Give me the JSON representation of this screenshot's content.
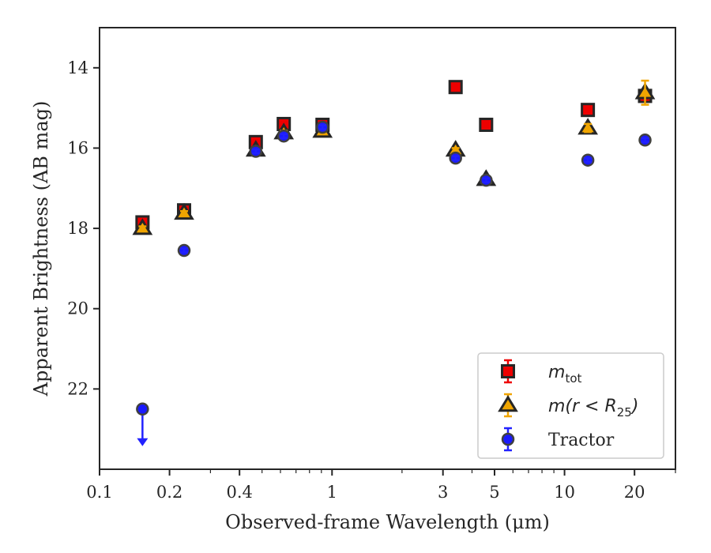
{
  "chart_data": {
    "type": "scatter",
    "xlabel": "Observed-frame Wavelength (μm)",
    "ylabel": "Apparent Brightness (AB mag)",
    "x_scale": "log",
    "y_inverted": true,
    "xlim": [
      0.1,
      30
    ],
    "ylim": [
      24,
      13
    ],
    "xticks": [
      {
        "value": 0.1,
        "label": "0.1"
      },
      {
        "value": 0.2,
        "label": "0.2"
      },
      {
        "value": 0.4,
        "label": "0.4"
      },
      {
        "value": 1,
        "label": "1"
      },
      {
        "value": 3,
        "label": "3"
      },
      {
        "value": 5,
        "label": "5"
      },
      {
        "value": 10,
        "label": "10"
      },
      {
        "value": 20,
        "label": "20"
      }
    ],
    "yticks": [
      {
        "value": 14,
        "label": "14"
      },
      {
        "value": 16,
        "label": "16"
      },
      {
        "value": 18,
        "label": "18"
      },
      {
        "value": 20,
        "label": "20"
      },
      {
        "value": 22,
        "label": "22"
      }
    ],
    "legend_position": "lower-right",
    "series": [
      {
        "name": "m_tot",
        "legend_label": "mtot",
        "marker": "square",
        "face_color": "#ee0000",
        "edge_color": "#262626",
        "err_color": "#ee0000",
        "points": [
          {
            "x": 0.153,
            "y": 17.85,
            "err": 0.05
          },
          {
            "x": 0.231,
            "y": 17.55,
            "err": 0.05
          },
          {
            "x": 0.47,
            "y": 15.85,
            "err": 0.05
          },
          {
            "x": 0.62,
            "y": 15.4,
            "err": 0.05
          },
          {
            "x": 0.91,
            "y": 15.42,
            "err": 0.05
          },
          {
            "x": 3.4,
            "y": 14.48,
            "err": 0.05
          },
          {
            "x": 4.6,
            "y": 15.42,
            "err": 0.05
          },
          {
            "x": 12.6,
            "y": 15.05,
            "err": 0.05
          },
          {
            "x": 22.2,
            "y": 14.7,
            "err": 0.1
          }
        ]
      },
      {
        "name": "m(r < R25)",
        "legend_label": "m(r<R25)",
        "marker": "triangle",
        "face_color": "#f0a500",
        "edge_color": "#262626",
        "err_color": "#f0a500",
        "points": [
          {
            "x": 0.153,
            "y": 18.0,
            "err": 0.05
          },
          {
            "x": 0.231,
            "y": 17.62,
            "err": 0.05
          },
          {
            "x": 0.47,
            "y": 16.05,
            "err": 0.05
          },
          {
            "x": 0.62,
            "y": 15.62,
            "err": 0.05
          },
          {
            "x": 0.91,
            "y": 15.58,
            "err": 0.05
          },
          {
            "x": 3.4,
            "y": 16.05,
            "err": 0.05
          },
          {
            "x": 4.6,
            "y": 16.78,
            "err": 0.05
          },
          {
            "x": 12.6,
            "y": 15.5,
            "err": 0.1
          },
          {
            "x": 22.2,
            "y": 14.62,
            "err": 0.3
          }
        ]
      },
      {
        "name": "Tractor",
        "legend_label": "Tractor",
        "marker": "circle",
        "face_color": "#1a1aff",
        "edge_color": "#404040",
        "err_color": "#2222ff",
        "points": [
          {
            "x": 0.153,
            "y": 22.5,
            "err": 0.0,
            "upper_limit": true
          },
          {
            "x": 0.231,
            "y": 18.55,
            "err": 0.05
          },
          {
            "x": 0.47,
            "y": 16.08,
            "err": 0.05
          },
          {
            "x": 0.62,
            "y": 15.7,
            "err": 0.05
          },
          {
            "x": 0.91,
            "y": 15.48,
            "err": 0.05
          },
          {
            "x": 3.4,
            "y": 16.25,
            "err": 0.05
          },
          {
            "x": 4.6,
            "y": 16.8,
            "err": 0.05
          },
          {
            "x": 12.6,
            "y": 16.3,
            "err": 0.05
          },
          {
            "x": 22.2,
            "y": 15.8,
            "err": 0.05
          }
        ]
      }
    ]
  }
}
